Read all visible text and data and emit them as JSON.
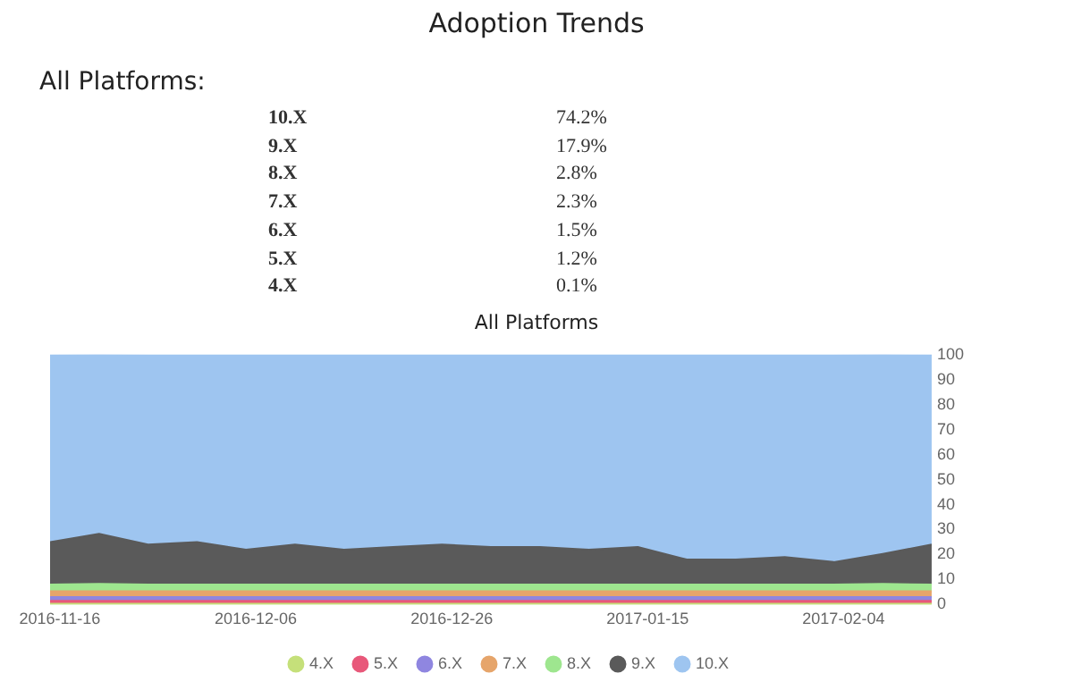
{
  "chart_data": {
    "type": "area",
    "title": "Adoption Trends",
    "subtitle": "All Platforms:",
    "annotations": [
      "10.X",
      "74.2%",
      "9.X",
      "17.9%",
      "8.X",
      "2.8%",
      "7.X",
      "2.3%",
      "6.X",
      "1.5%",
      "5.X",
      "1.2%",
      "4.X",
      "0.1%",
      "All Platforms"
    ],
    "stacked": true,
    "x": [
      "2016-11-15",
      "2016-11-20",
      "2016-11-25",
      "2016-11-30",
      "2016-12-05",
      "2016-12-10",
      "2016-12-15",
      "2016-12-20",
      "2016-12-25",
      "2016-12-30",
      "2017-01-04",
      "2017-01-09",
      "2017-01-14",
      "2017-01-19",
      "2017-01-24",
      "2017-01-29",
      "2017-02-03",
      "2017-02-08",
      "2017-02-13"
    ],
    "xlim": [
      "2016-11-15",
      "2017-02-13"
    ],
    "xticks": [
      "2016-11-16",
      "2016-12-06",
      "2016-12-26",
      "2017-01-15",
      "2017-02-04"
    ],
    "ylim": [
      0,
      100
    ],
    "yticks": [
      0,
      10,
      20,
      30,
      40,
      50,
      60,
      70,
      80,
      90,
      100
    ],
    "grid": false,
    "legend": "bottom",
    "marker": "none",
    "series": [
      {
        "name": "4.X",
        "color": "#c5e07a",
        "values": [
          0.3,
          0.3,
          0.3,
          0.3,
          0.3,
          0.3,
          0.3,
          0.3,
          0.3,
          0.3,
          0.3,
          0.3,
          0.3,
          0.3,
          0.3,
          0.3,
          0.3,
          0.3,
          0.3
        ]
      },
      {
        "name": "5.X",
        "color": "#e8587a",
        "values": [
          1.2,
          1.2,
          1.2,
          1.2,
          1.2,
          1.2,
          1.2,
          1.2,
          1.2,
          1.2,
          1.2,
          1.2,
          1.2,
          1.2,
          1.2,
          1.2,
          1.2,
          1.2,
          1.2
        ]
      },
      {
        "name": "6.X",
        "color": "#8f86e0",
        "values": [
          1.5,
          1.5,
          1.5,
          1.5,
          1.5,
          1.5,
          1.5,
          1.5,
          1.5,
          1.5,
          1.5,
          1.5,
          1.5,
          1.5,
          1.5,
          1.5,
          1.5,
          1.5,
          1.5
        ]
      },
      {
        "name": "7.X",
        "color": "#e6a56b",
        "values": [
          2.3,
          2.3,
          2.3,
          2.3,
          2.3,
          2.3,
          2.3,
          2.3,
          2.3,
          2.3,
          2.3,
          2.3,
          2.3,
          2.3,
          2.3,
          2.3,
          2.3,
          2.3,
          2.3
        ]
      },
      {
        "name": "8.X",
        "color": "#9ee68f",
        "values": [
          2.7,
          3,
          2.7,
          2.7,
          2.7,
          2.7,
          2.7,
          2.7,
          2.7,
          2.7,
          2.7,
          2.7,
          2.7,
          2.7,
          2.7,
          2.7,
          2.7,
          3,
          2.7
        ]
      },
      {
        "name": "9.X",
        "color": "#5a5a5a",
        "values": [
          17,
          20,
          16,
          17,
          14,
          16,
          14,
          15,
          16,
          15,
          15,
          14,
          15,
          10,
          10,
          11,
          9,
          12,
          16
        ]
      },
      {
        "name": "10.X",
        "color": "#9ec5f0",
        "values": [
          75,
          72,
          76,
          75,
          78,
          76,
          78,
          77,
          76,
          77,
          77,
          78,
          77,
          82,
          82,
          81,
          83,
          80,
          76
        ]
      }
    ]
  }
}
